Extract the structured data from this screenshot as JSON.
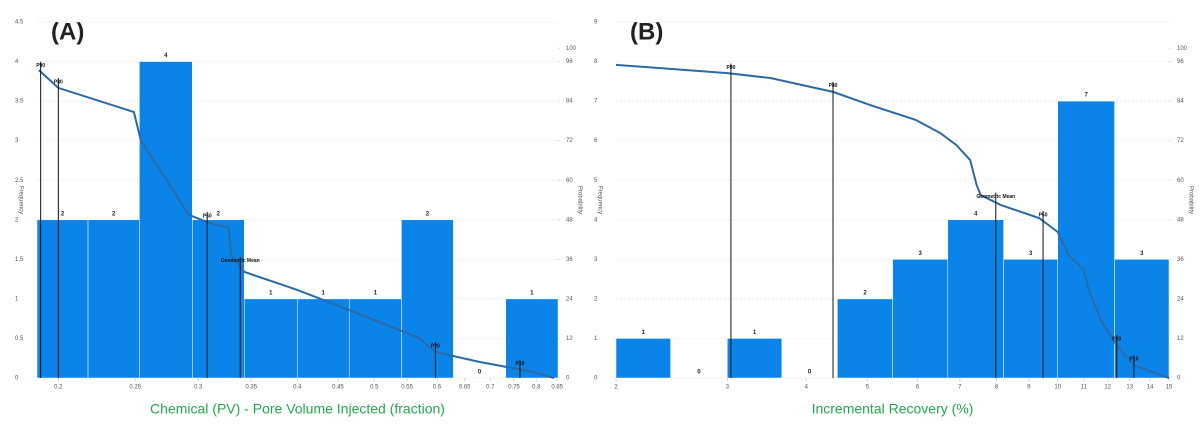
{
  "chart_data": [
    {
      "type": "histogram",
      "panel_label": "(A)",
      "x_label": "Chemical (PV) - Pore Volume Injected (fraction)",
      "y_label": "Frequency",
      "y2_label": "Probability",
      "x_scale": "log",
      "xlim": [
        0.188,
        0.852
      ],
      "xticks": [
        0.2,
        0.25,
        0.3,
        0.35,
        0.4,
        0.45,
        0.5,
        0.55,
        0.6,
        0.65,
        0.7,
        0.75,
        0.8,
        0.85
      ],
      "ylim": [
        0,
        4.5
      ],
      "yticks": [
        0,
        0.5,
        1,
        1.5,
        2,
        2.5,
        3,
        3.5,
        4,
        4.5
      ],
      "y2lim": [
        0,
        108
      ],
      "y2ticks": [
        0,
        12,
        24,
        36,
        48,
        60,
        72,
        84,
        96,
        100
      ],
      "grid": true,
      "bins": [
        0.188,
        0.218,
        0.253,
        0.295,
        0.343,
        0.4,
        0.465,
        0.541,
        0.629,
        0.732,
        0.852
      ],
      "values": [
        2,
        2,
        4,
        2,
        1,
        1,
        1,
        2,
        0,
        1
      ],
      "color": "#0a84e8",
      "line": {
        "axis": "y2",
        "color": "#2b6aa6",
        "x": [
          0.189,
          0.2,
          0.249,
          0.254,
          0.292,
          0.308,
          0.328,
          0.33,
          0.343,
          0.4,
          0.465,
          0.518,
          0.57,
          0.597,
          0.678,
          0.794,
          0.842
        ],
        "values": [
          93.4,
          88.0,
          80.7,
          72.2,
          49.5,
          47.3,
          45.5,
          37.3,
          32.2,
          26.7,
          20.6,
          16.1,
          12.1,
          7.9,
          4.9,
          1.8,
          0
        ]
      },
      "markers": [
        {
          "label": "P90",
          "x": 0.19
        },
        {
          "label": "P80",
          "x": 0.2
        },
        {
          "label": "P50",
          "x": 0.308
        },
        {
          "label": "Geometric Mean",
          "x": 0.339
        },
        {
          "label": "P20",
          "x": 0.597
        },
        {
          "label": "P10",
          "x": 0.763
        }
      ]
    },
    {
      "type": "histogram",
      "panel_label": "(B)",
      "x_label": "Incremental Recovery (%)",
      "y_label": "Frequency",
      "y2_label": "Probability",
      "x_scale": "log",
      "xlim": [
        2,
        15
      ],
      "xticks": [
        2,
        3,
        4,
        5,
        6,
        7,
        8,
        9,
        10,
        11,
        12,
        13,
        14,
        15
      ],
      "ylim": [
        0,
        9
      ],
      "yticks": [
        0,
        1,
        2,
        3,
        4,
        5,
        6,
        7,
        8,
        9
      ],
      "y2lim": [
        0,
        108
      ],
      "y2ticks": [
        0,
        12,
        24,
        36,
        48,
        60,
        72,
        84,
        96,
        100
      ],
      "grid": true,
      "bins": [
        2.0,
        2.44,
        3.0,
        3.66,
        4.48,
        5.48,
        6.7,
        8.21,
        10.0,
        12.3,
        15.0
      ],
      "values": [
        1,
        0,
        1,
        0,
        2,
        3,
        4,
        3,
        7,
        3
      ],
      "color": "#0a84e8",
      "line": {
        "axis": "y2",
        "color": "#2b6aa6",
        "x": [
          2.0,
          3.0,
          3.51,
          4.41,
          5.05,
          5.96,
          6.52,
          6.91,
          7.27,
          7.44,
          7.55,
          8.12,
          9.35,
          10.0,
          10.4,
          11.0,
          11.2,
          11.7,
          12.4,
          13.2,
          15.0
        ],
        "values": [
          95.0,
          92.5,
          91.0,
          86.8,
          82.8,
          78.3,
          74.3,
          70.7,
          66.1,
          58.6,
          55.5,
          52.5,
          48.5,
          44.3,
          37.3,
          32.8,
          26.7,
          17.6,
          10.0,
          3.9,
          0
        ]
      },
      "markers": [
        {
          "label": "P90",
          "x": 3.04
        },
        {
          "label": "P80",
          "x": 4.41
        },
        {
          "label": "Geometric Mean",
          "x": 7.98
        },
        {
          "label": "P50",
          "x": 9.48
        },
        {
          "label": "P20",
          "x": 12.4
        },
        {
          "label": "P10",
          "x": 13.2
        }
      ]
    }
  ]
}
